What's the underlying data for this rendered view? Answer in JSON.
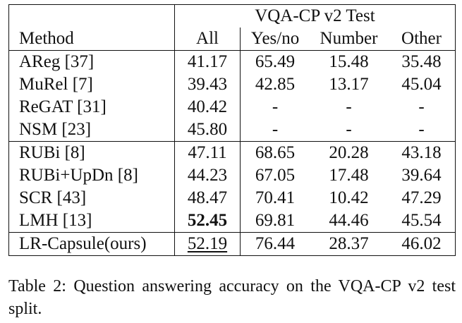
{
  "table": {
    "super_header": "VQA-CP v2 Test",
    "columns": [
      "Method",
      "All",
      "Yes/no",
      "Number",
      "Other"
    ],
    "groups": [
      {
        "rows": [
          {
            "method": "AReg [37]",
            "all": "41.17",
            "yes_no": "65.49",
            "number": "15.48",
            "other": "35.48"
          },
          {
            "method": "MuRel [7]",
            "all": "39.43",
            "yes_no": "42.85",
            "number": "13.17",
            "other": "45.04"
          },
          {
            "method": "ReGAT [31]",
            "all": "40.42",
            "yes_no": "-",
            "number": "-",
            "other": "-"
          },
          {
            "method": "NSM [23]",
            "all": "45.80",
            "yes_no": "-",
            "number": "-",
            "other": "-"
          }
        ]
      },
      {
        "rows": [
          {
            "method": "RUBi [8]",
            "all": "47.11",
            "yes_no": "68.65",
            "number": "20.28",
            "other": "43.18"
          },
          {
            "method": "RUBi+UpDn [8]",
            "all": "44.23",
            "yes_no": "67.05",
            "number": "17.48",
            "other": "39.64"
          },
          {
            "method": "SCR [43]",
            "all": "48.47",
            "yes_no": "70.41",
            "number": "10.42",
            "other": "47.29"
          },
          {
            "method": "LMH [13]",
            "all": "52.45",
            "yes_no": "69.81",
            "number": "44.46",
            "other": "45.54"
          }
        ]
      },
      {
        "rows": [
          {
            "method": "LR-Capsule(ours)",
            "all": "52.19",
            "yes_no": "76.44",
            "number": "28.37",
            "other": "46.02"
          }
        ]
      }
    ]
  },
  "caption": "Table 2: Question answering accuracy on the VQA-CP v2 test split."
}
